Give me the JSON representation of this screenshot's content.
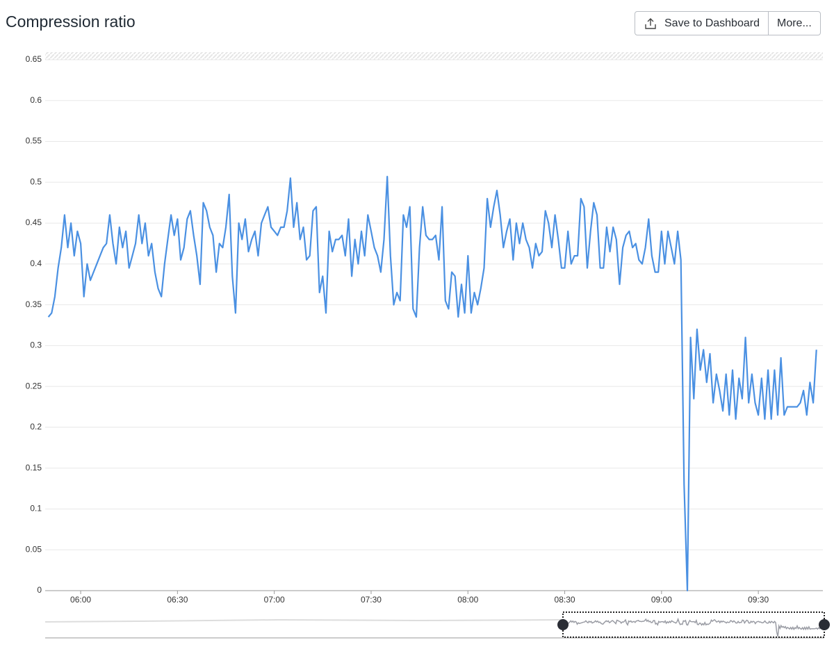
{
  "toolbar": {
    "title": "Compression ratio",
    "save": "Save to Dashboard",
    "more": "More..."
  },
  "chart_data": {
    "type": "line",
    "color": "#4a90e2",
    "grid": true,
    "xlim": [
      "05:49",
      "09:50"
    ],
    "xticks": [
      "06:00",
      "06:30",
      "07:00",
      "07:30",
      "08:00",
      "08:30",
      "09:00",
      "09:30"
    ],
    "ylim": [
      0,
      0.65
    ],
    "yticks": [
      0,
      0.05,
      0.1,
      0.15,
      0.2,
      0.25,
      0.3,
      0.35,
      0.4,
      0.45,
      0.5,
      0.55,
      0.6,
      0.65
    ],
    "x": [
      "05:50",
      "05:51",
      "05:52",
      "05:53",
      "05:54",
      "05:55",
      "05:56",
      "05:57",
      "05:58",
      "05:59",
      "06:00",
      "06:01",
      "06:02",
      "06:03",
      "06:04",
      "06:05",
      "06:06",
      "06:07",
      "06:08",
      "06:09",
      "06:10",
      "06:11",
      "06:12",
      "06:13",
      "06:14",
      "06:15",
      "06:16",
      "06:17",
      "06:18",
      "06:19",
      "06:20",
      "06:21",
      "06:22",
      "06:23",
      "06:24",
      "06:25",
      "06:26",
      "06:27",
      "06:28",
      "06:29",
      "06:30",
      "06:31",
      "06:32",
      "06:33",
      "06:34",
      "06:35",
      "06:36",
      "06:37",
      "06:38",
      "06:39",
      "06:40",
      "06:41",
      "06:42",
      "06:43",
      "06:44",
      "06:45",
      "06:46",
      "06:47",
      "06:48",
      "06:49",
      "06:50",
      "06:51",
      "06:52",
      "06:53",
      "06:54",
      "06:55",
      "06:56",
      "06:57",
      "06:58",
      "06:59",
      "07:00",
      "07:01",
      "07:02",
      "07:03",
      "07:04",
      "07:05",
      "07:06",
      "07:07",
      "07:08",
      "07:09",
      "07:10",
      "07:11",
      "07:12",
      "07:13",
      "07:14",
      "07:15",
      "07:16",
      "07:17",
      "07:18",
      "07:19",
      "07:20",
      "07:21",
      "07:22",
      "07:23",
      "07:24",
      "07:25",
      "07:26",
      "07:27",
      "07:28",
      "07:29",
      "07:30",
      "07:31",
      "07:32",
      "07:33",
      "07:34",
      "07:35",
      "07:36",
      "07:37",
      "07:38",
      "07:39",
      "07:40",
      "07:41",
      "07:42",
      "07:43",
      "07:44",
      "07:45",
      "07:46",
      "07:47",
      "07:48",
      "07:49",
      "07:50",
      "07:51",
      "07:52",
      "07:53",
      "07:54",
      "07:55",
      "07:56",
      "07:57",
      "07:58",
      "07:59",
      "08:00",
      "08:01",
      "08:02",
      "08:03",
      "08:04",
      "08:05",
      "08:06",
      "08:07",
      "08:08",
      "08:09",
      "08:10",
      "08:11",
      "08:12",
      "08:13",
      "08:14",
      "08:15",
      "08:16",
      "08:17",
      "08:18",
      "08:19",
      "08:20",
      "08:21",
      "08:22",
      "08:23",
      "08:24",
      "08:25",
      "08:26",
      "08:27",
      "08:28",
      "08:29",
      "08:30",
      "08:31",
      "08:32",
      "08:33",
      "08:34",
      "08:35",
      "08:36",
      "08:37",
      "08:38",
      "08:39",
      "08:40",
      "08:41",
      "08:42",
      "08:43",
      "08:44",
      "08:45",
      "08:46",
      "08:47",
      "08:48",
      "08:49",
      "08:50",
      "08:51",
      "08:52",
      "08:53",
      "08:54",
      "08:55",
      "08:56",
      "08:57",
      "08:58",
      "08:59",
      "09:00",
      "09:01",
      "09:02",
      "09:03",
      "09:04",
      "09:05",
      "09:06",
      "09:07",
      "09:08",
      "09:09",
      "09:10",
      "09:11",
      "09:12",
      "09:13",
      "09:14",
      "09:15",
      "09:16",
      "09:17",
      "09:18",
      "09:19",
      "09:20",
      "09:21",
      "09:22",
      "09:23",
      "09:24",
      "09:25",
      "09:26",
      "09:27",
      "09:28",
      "09:29",
      "09:30",
      "09:31",
      "09:32",
      "09:33",
      "09:34",
      "09:35",
      "09:36",
      "09:37",
      "09:38",
      "09:39",
      "09:40",
      "09:41",
      "09:42",
      "09:43",
      "09:44",
      "09:45",
      "09:46",
      "09:47",
      "09:48"
    ],
    "values": [
      0.335,
      0.34,
      0.36,
      0.395,
      0.42,
      0.46,
      0.42,
      0.45,
      0.41,
      0.44,
      0.425,
      0.36,
      0.4,
      0.38,
      0.39,
      0.4,
      0.41,
      0.42,
      0.425,
      0.46,
      0.425,
      0.4,
      0.445,
      0.42,
      0.44,
      0.395,
      0.41,
      0.425,
      0.46,
      0.425,
      0.45,
      0.41,
      0.425,
      0.39,
      0.37,
      0.36,
      0.4,
      0.43,
      0.46,
      0.435,
      0.455,
      0.405,
      0.42,
      0.455,
      0.465,
      0.435,
      0.41,
      0.375,
      0.475,
      0.465,
      0.445,
      0.435,
      0.39,
      0.425,
      0.42,
      0.445,
      0.485,
      0.385,
      0.34,
      0.45,
      0.43,
      0.455,
      0.415,
      0.43,
      0.44,
      0.41,
      0.45,
      0.46,
      0.47,
      0.445,
      0.44,
      0.435,
      0.445,
      0.445,
      0.465,
      0.505,
      0.445,
      0.475,
      0.43,
      0.445,
      0.405,
      0.41,
      0.465,
      0.47,
      0.365,
      0.385,
      0.34,
      0.44,
      0.415,
      0.43,
      0.43,
      0.435,
      0.41,
      0.455,
      0.385,
      0.43,
      0.4,
      0.44,
      0.41,
      0.46,
      0.44,
      0.42,
      0.41,
      0.39,
      0.43,
      0.507,
      0.41,
      0.35,
      0.365,
      0.355,
      0.46,
      0.445,
      0.47,
      0.345,
      0.335,
      0.42,
      0.47,
      0.435,
      0.43,
      0.43,
      0.435,
      0.405,
      0.47,
      0.355,
      0.345,
      0.39,
      0.385,
      0.335,
      0.375,
      0.34,
      0.41,
      0.34,
      0.365,
      0.35,
      0.37,
      0.395,
      0.48,
      0.445,
      0.47,
      0.49,
      0.46,
      0.42,
      0.44,
      0.455,
      0.405,
      0.45,
      0.425,
      0.45,
      0.43,
      0.42,
      0.395,
      0.425,
      0.41,
      0.415,
      0.465,
      0.45,
      0.42,
      0.46,
      0.43,
      0.395,
      0.395,
      0.44,
      0.4,
      0.41,
      0.41,
      0.48,
      0.47,
      0.395,
      0.44,
      0.475,
      0.46,
      0.395,
      0.395,
      0.445,
      0.415,
      0.445,
      0.43,
      0.375,
      0.42,
      0.435,
      0.44,
      0.42,
      0.425,
      0.405,
      0.4,
      0.42,
      0.455,
      0.41,
      0.39,
      0.39,
      0.44,
      0.4,
      0.44,
      0.42,
      0.4,
      0.44,
      0.405,
      0.13,
      0,
      0.31,
      0.235,
      0.32,
      0.27,
      0.295,
      0.255,
      0.29,
      0.23,
      0.265,
      0.245,
      0.22,
      0.265,
      0.215,
      0.27,
      0.21,
      0.26,
      0.235,
      0.31,
      0.23,
      0.265,
      0.23,
      0.215,
      0.26,
      0.21,
      0.27,
      0.21,
      0.27,
      0.215,
      0.285,
      0.215,
      0.225,
      0.225,
      0.225,
      0.225,
      0.23,
      0.245,
      0.215,
      0.255,
      0.23,
      0.295
    ]
  }
}
